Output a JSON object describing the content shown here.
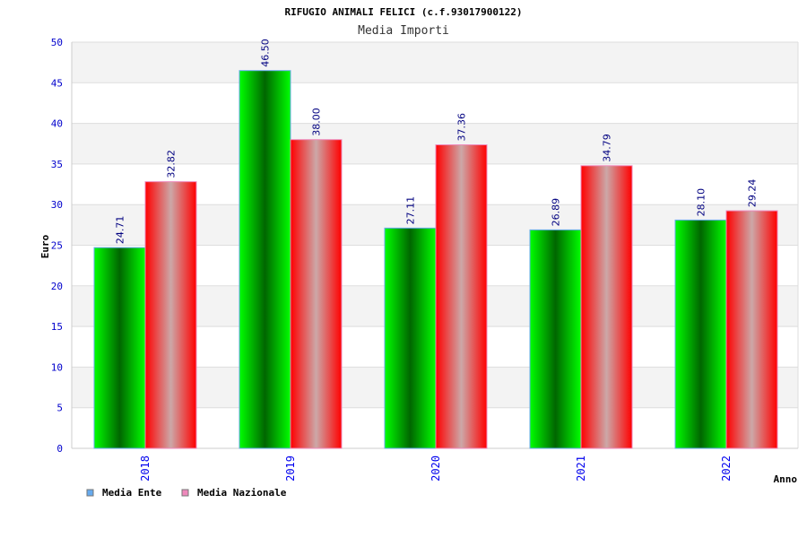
{
  "chart_data": {
    "type": "bar",
    "title": "RIFUGIO ANIMALI FELICI (c.f.93017900122)",
    "subtitle": "Media Importi",
    "xlabel": "Anno",
    "ylabel": "Euro",
    "ylim": [
      0,
      50
    ],
    "yticks": [
      0,
      5,
      10,
      15,
      20,
      25,
      30,
      35,
      40,
      45,
      50
    ],
    "categories": [
      "2018",
      "2019",
      "2020",
      "2021",
      "2022"
    ],
    "series": [
      {
        "name": "Media Ente",
        "values": [
          24.71,
          46.5,
          27.11,
          26.89,
          28.1
        ],
        "labels": [
          "24.71",
          "46.50",
          "27.11",
          "26.89",
          "28.10"
        ],
        "color": "#00ff00",
        "legend_color": "#66aaee"
      },
      {
        "name": "Media Nazionale",
        "values": [
          32.82,
          38.0,
          37.36,
          34.79,
          29.24
        ],
        "labels": [
          "32.82",
          "38.00",
          "37.36",
          "34.79",
          "29.24"
        ],
        "color": "#ff0000",
        "legend_color": "#ee88bb"
      }
    ],
    "grid": true,
    "legend": "bottom-left"
  }
}
